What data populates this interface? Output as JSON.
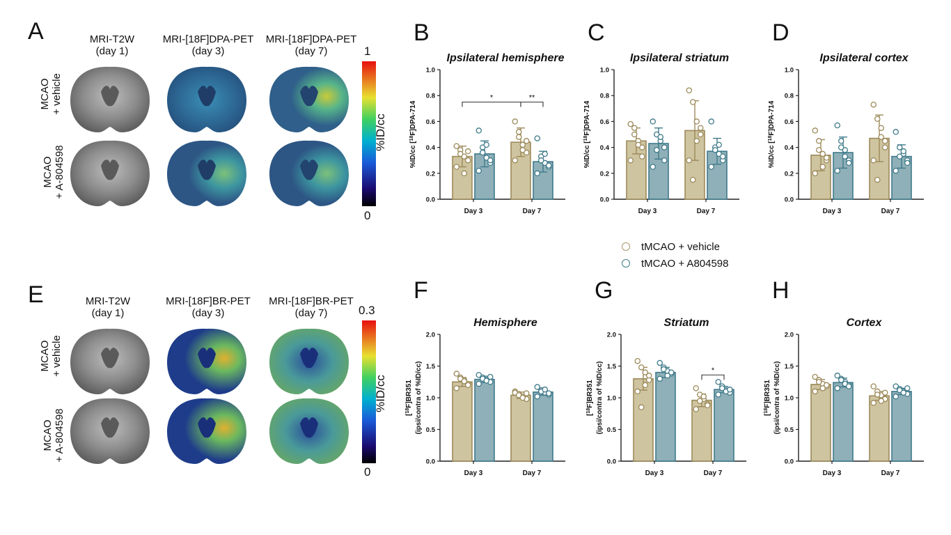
{
  "top_row": {
    "letter": "A",
    "col_titles": [
      [
        "MRI-T2W",
        "(day 1)"
      ],
      [
        "MRI-[18F]DPA-PET",
        "(day 3)"
      ],
      [
        "MRI-[18F]DPA-PET",
        "(day 7)"
      ]
    ],
    "row_labels": [
      [
        "MCAO",
        "+ vehicle"
      ],
      [
        "MCAO",
        "+ A-804598"
      ]
    ],
    "colorbar": {
      "max": "1",
      "min": "0",
      "unit": "%ID/cc"
    }
  },
  "bottom_row": {
    "letter": "E",
    "col_titles": [
      [
        "MRI-T2W",
        "(day 1)"
      ],
      [
        "MRI-[18F]BR-PET",
        "(day 3)"
      ],
      [
        "MRI-[18F]BR-PET",
        "(day 7)"
      ]
    ],
    "row_labels": [
      [
        "MCAO",
        "+ vehicle"
      ],
      [
        "MCAO",
        "+ A-804598"
      ]
    ],
    "colorbar": {
      "max": "0.3",
      "min": "0",
      "unit": "%ID/cc"
    }
  },
  "legend": {
    "items": [
      {
        "label": "tMCAO + vehicle",
        "color": "#a8956a"
      },
      {
        "label": "tMCAO + A804598",
        "color": "#3f7a8a"
      }
    ]
  },
  "colors": {
    "vehicle_fill": "#cec4a0",
    "vehicle_edge": "#9c8a5a",
    "drug_fill": "#8fb0b8",
    "drug_edge": "#3f7a8a"
  },
  "chart_data": [
    {
      "letter": "B",
      "type": "bar",
      "title": "Ipsilateral hemisphere",
      "ylabel_pre": "%ID/cc [",
      "ylabel_sup": "18",
      "ylabel_post": "F]DPA-714",
      "categories": [
        "Day 3",
        "Day 7"
      ],
      "ylim": [
        0,
        1.0
      ],
      "yticks": [
        "0.0",
        "0.2",
        "0.4",
        "0.6",
        "0.8",
        "1.0"
      ],
      "series": [
        {
          "values": [
            0.33,
            0.44
          ],
          "err": [
            0.08,
            0.11
          ],
          "points": [
            [
              0.41,
              0.38,
              0.33,
              0.3,
              0.25,
              0.35,
              0.2,
              0.37
            ],
            [
              0.6,
              0.48,
              0.42,
              0.36,
              0.3,
              0.52,
              0.38,
              0.45
            ]
          ]
        },
        {
          "values": [
            0.35,
            0.29
          ],
          "err": [
            0.1,
            0.08
          ],
          "points": [
            [
              0.53,
              0.4,
              0.32,
              0.28,
              0.22,
              0.36,
              0.42,
              0.3
            ],
            [
              0.47,
              0.33,
              0.28,
              0.25,
              0.2,
              0.3,
              0.35,
              0.26
            ]
          ]
        }
      ],
      "sig": [
        {
          "label": "*",
          "from": [
            0,
            0
          ],
          "to": [
            1,
            0
          ]
        },
        {
          "label": "**",
          "from": [
            1,
            0
          ],
          "to": [
            1,
            1
          ]
        }
      ]
    },
    {
      "letter": "C",
      "type": "bar",
      "title": "Ipsilateral striatum",
      "ylabel_pre": "%ID/cc [",
      "ylabel_sup": "18",
      "ylabel_post": "F]DPA-714",
      "categories": [
        "Day 3",
        "Day 7"
      ],
      "ylim": [
        0,
        1.0
      ],
      "yticks": [
        "0.0",
        "0.2",
        "0.4",
        "0.6",
        "0.8",
        "1.0"
      ],
      "series": [
        {
          "values": [
            0.45,
            0.53
          ],
          "err": [
            0.1,
            0.23
          ],
          "points": [
            [
              0.58,
              0.55,
              0.45,
              0.4,
              0.3,
              0.5,
              0.42,
              0.33
            ],
            [
              0.84,
              0.75,
              0.6,
              0.5,
              0.3,
              0.15,
              0.45,
              0.55
            ]
          ]
        },
        {
          "values": [
            0.43,
            0.37
          ],
          "err": [
            0.12,
            0.1
          ],
          "points": [
            [
              0.6,
              0.5,
              0.45,
              0.4,
              0.25,
              0.38,
              0.48,
              0.3
            ],
            [
              0.6,
              0.4,
              0.35,
              0.3,
              0.25,
              0.38,
              0.42,
              0.33
            ]
          ]
        }
      ],
      "sig": []
    },
    {
      "letter": "D",
      "type": "bar",
      "title": "Ipsilateral cortex",
      "ylabel_pre": "%ID/cc [",
      "ylabel_sup": "18",
      "ylabel_post": "F]DPA-714",
      "categories": [
        "Day 3",
        "Day 7"
      ],
      "ylim": [
        0,
        1.0
      ],
      "yticks": [
        "0.0",
        "0.2",
        "0.4",
        "0.6",
        "0.8",
        "1.0"
      ],
      "series": [
        {
          "values": [
            0.34,
            0.47
          ],
          "err": [
            0.12,
            0.18
          ],
          "points": [
            [
              0.53,
              0.45,
              0.35,
              0.3,
              0.2,
              0.38,
              0.25,
              0.32
            ],
            [
              0.73,
              0.62,
              0.55,
              0.45,
              0.3,
              0.15,
              0.48,
              0.4
            ]
          ]
        },
        {
          "values": [
            0.36,
            0.33
          ],
          "err": [
            0.12,
            0.09
          ],
          "points": [
            [
              0.57,
              0.45,
              0.38,
              0.3,
              0.22,
              0.4,
              0.33,
              0.28
            ],
            [
              0.52,
              0.4,
              0.35,
              0.3,
              0.22,
              0.33,
              0.37,
              0.28
            ]
          ]
        }
      ],
      "sig": []
    },
    {
      "letter": "F",
      "type": "bar",
      "title": "Hemisphere",
      "ylabel_pre": "[",
      "ylabel_sup": "18",
      "ylabel_post": "F]BR351",
      "ylabel2": "(ipsi/contra of %ID/cc)",
      "categories": [
        "Day 3",
        "Day 7"
      ],
      "ylim": [
        0,
        2.0
      ],
      "yticks": [
        "0.0",
        "0.5",
        "1.0",
        "1.5",
        "2.0"
      ],
      "series": [
        {
          "values": [
            1.25,
            1.04
          ],
          "err": [
            0.07,
            0.05
          ],
          "points": [
            [
              1.38,
              1.32,
              1.28,
              1.22,
              1.15,
              1.3,
              1.26,
              1.2
            ],
            [
              1.1,
              1.06,
              1.02,
              0.98,
              1.08,
              1.04,
              1.0,
              1.07
            ]
          ]
        },
        {
          "values": [
            1.29,
            1.09
          ],
          "err": [
            0.05,
            0.05
          ],
          "points": [
            [
              1.36,
              1.32,
              1.28,
              1.25,
              1.22,
              1.3,
              1.27,
              1.33
            ],
            [
              1.17,
              1.12,
              1.08,
              1.05,
              1.02,
              1.1,
              1.13,
              1.07
            ]
          ]
        }
      ],
      "sig": []
    },
    {
      "letter": "G",
      "type": "bar",
      "title": "Striatum",
      "ylabel_pre": "[",
      "ylabel_sup": "18",
      "ylabel_post": "F]BR351",
      "ylabel2": "(ipsi/contra of %ID/cc)",
      "categories": [
        "Day 3",
        "Day 7"
      ],
      "ylim": [
        0,
        2.0
      ],
      "yticks": [
        "0.0",
        "0.5",
        "1.0",
        "1.5",
        "2.0"
      ],
      "series": [
        {
          "values": [
            1.3,
            0.96
          ],
          "err": [
            0.18,
            0.1
          ],
          "points": [
            [
              1.58,
              1.48,
              1.4,
              1.28,
              1.1,
              0.85,
              1.2,
              1.35
            ],
            [
              1.15,
              1.05,
              0.98,
              0.9,
              0.82,
              0.95,
              1.02,
              0.88
            ]
          ]
        },
        {
          "values": [
            1.4,
            1.13
          ],
          "err": [
            0.08,
            0.05
          ],
          "points": [
            [
              1.55,
              1.48,
              1.42,
              1.38,
              1.3,
              1.45,
              1.35,
              1.4
            ],
            [
              1.25,
              1.18,
              1.12,
              1.08,
              1.05,
              1.15,
              1.1,
              1.13
            ]
          ]
        }
      ],
      "sig": [
        {
          "label": "*",
          "from": [
            1,
            0
          ],
          "to": [
            1,
            1
          ]
        }
      ]
    },
    {
      "letter": "H",
      "type": "bar",
      "title": "Cortex",
      "ylabel_pre": "[",
      "ylabel_sup": "18",
      "ylabel_post": "F]BR351",
      "ylabel2": "(ipsi/contra of %ID/cc)",
      "categories": [
        "Day 3",
        "Day 7"
      ],
      "ylim": [
        0,
        2.0
      ],
      "yticks": [
        "0.0",
        "0.5",
        "1.0",
        "1.5",
        "2.0"
      ],
      "series": [
        {
          "values": [
            1.21,
            1.03
          ],
          "err": [
            0.08,
            0.07
          ],
          "points": [
            [
              1.33,
              1.28,
              1.22,
              1.18,
              1.1,
              1.25,
              1.15,
              1.2
            ],
            [
              1.18,
              1.1,
              1.04,
              0.98,
              0.92,
              1.05,
              0.95,
              1.08
            ]
          ]
        },
        {
          "values": [
            1.24,
            1.1
          ],
          "err": [
            0.07,
            0.05
          ],
          "points": [
            [
              1.35,
              1.3,
              1.25,
              1.2,
              1.15,
              1.28,
              1.22,
              1.18
            ],
            [
              1.18,
              1.14,
              1.1,
              1.06,
              1.02,
              1.12,
              1.08,
              1.15
            ]
          ]
        }
      ],
      "sig": []
    }
  ]
}
